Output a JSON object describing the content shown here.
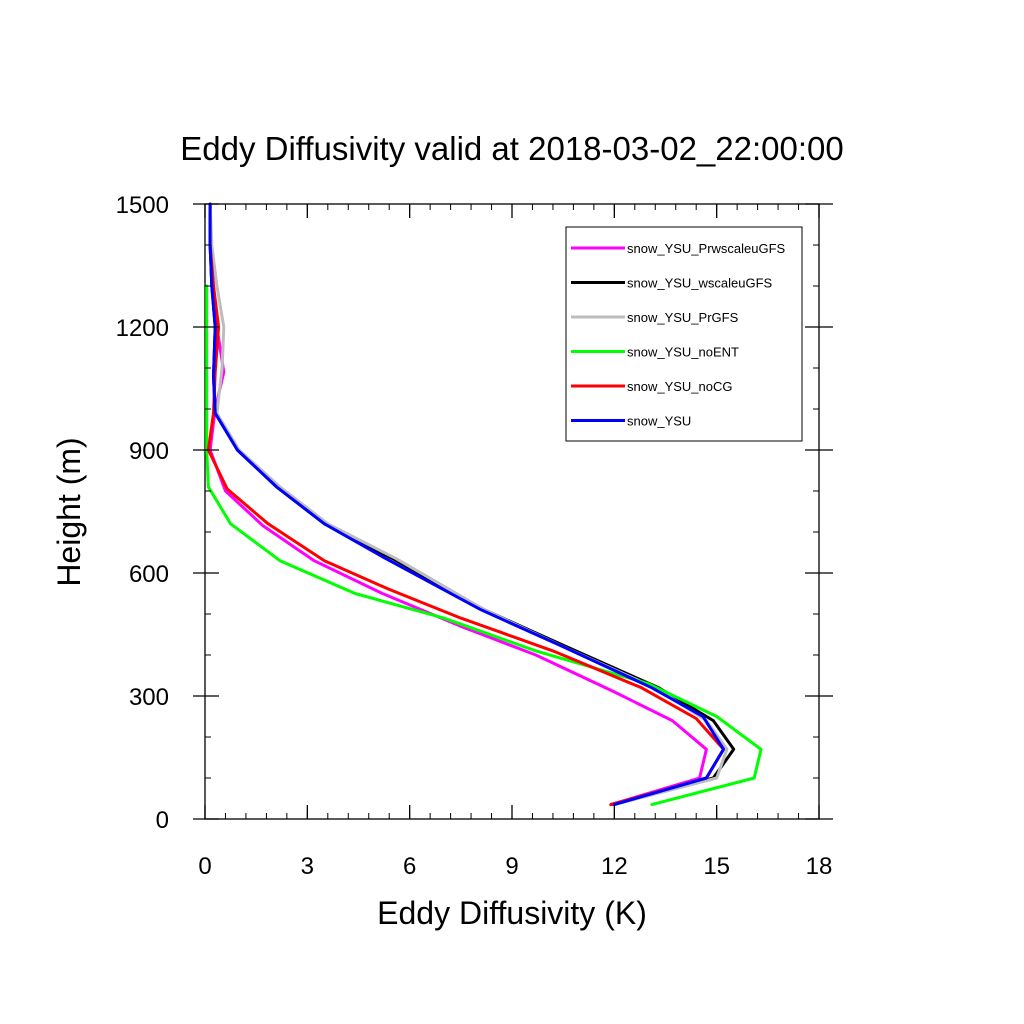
{
  "chart_data": {
    "type": "line",
    "title": "Eddy Diffusivity valid at 2018-03-02_22:00:00",
    "xlabel": "Eddy Diffusivity (K)",
    "ylabel": "Height (m)",
    "xlim": [
      0,
      18
    ],
    "ylim": [
      0,
      1500
    ],
    "xticks": [
      0,
      3,
      6,
      9,
      12,
      15,
      18
    ],
    "yticks": [
      0,
      300,
      600,
      900,
      1200,
      1500
    ],
    "x_minor_step": 0.6,
    "y_minor_step": 100,
    "grid": false,
    "legend_position": "top-right",
    "series": [
      {
        "name": "snow_YSU_PrwscaleuGFS",
        "color": "#ff00ff",
        "points": [
          [
            11.9,
            35
          ],
          [
            14.5,
            100
          ],
          [
            14.7,
            170
          ],
          [
            13.7,
            240
          ],
          [
            12.0,
            310
          ],
          [
            9.7,
            400
          ],
          [
            7.5,
            470
          ],
          [
            5.2,
            550
          ],
          [
            3.2,
            630
          ],
          [
            1.7,
            715
          ],
          [
            0.6,
            800
          ],
          [
            0.15,
            900
          ],
          [
            0.3,
            1000
          ],
          [
            0.55,
            1090
          ],
          [
            0.35,
            1200
          ],
          [
            0.25,
            1300
          ],
          [
            0.15,
            1400
          ],
          [
            0.15,
            1500
          ]
        ]
      },
      {
        "name": "snow_YSU_wscaleuGFS",
        "color": "#000000",
        "points": [
          [
            11.9,
            35
          ],
          [
            14.9,
            100
          ],
          [
            15.5,
            170
          ],
          [
            14.9,
            240
          ],
          [
            13.3,
            320
          ],
          [
            10.6,
            420
          ],
          [
            8.2,
            510
          ],
          [
            5.5,
            635
          ],
          [
            3.5,
            720
          ],
          [
            2.1,
            810
          ],
          [
            0.95,
            900
          ],
          [
            0.3,
            990
          ],
          [
            0.25,
            1080
          ],
          [
            0.3,
            1200
          ],
          [
            0.2,
            1300
          ],
          [
            0.15,
            1400
          ],
          [
            0.15,
            1500
          ]
        ]
      },
      {
        "name": "snow_YSU_PrGFS",
        "color": "#bdbdbd",
        "points": [
          [
            12.0,
            35
          ],
          [
            15.0,
            100
          ],
          [
            15.3,
            170
          ],
          [
            14.7,
            240
          ],
          [
            13.2,
            320
          ],
          [
            10.5,
            420
          ],
          [
            8.2,
            510
          ],
          [
            5.6,
            635
          ],
          [
            3.6,
            720
          ],
          [
            2.2,
            810
          ],
          [
            1.0,
            900
          ],
          [
            0.35,
            990
          ],
          [
            0.5,
            1100
          ],
          [
            0.55,
            1200
          ],
          [
            0.35,
            1300
          ],
          [
            0.2,
            1400
          ],
          [
            0.15,
            1500
          ]
        ]
      },
      {
        "name": "snow_YSU_noENT",
        "color": "#00ff00",
        "points": [
          [
            13.1,
            35
          ],
          [
            16.1,
            100
          ],
          [
            16.3,
            170
          ],
          [
            15.0,
            250
          ],
          [
            13.0,
            330
          ],
          [
            9.7,
            410
          ],
          [
            7.0,
            490
          ],
          [
            4.4,
            550
          ],
          [
            2.2,
            630
          ],
          [
            0.75,
            720
          ],
          [
            0.1,
            810
          ],
          [
            0.05,
            900
          ],
          [
            0.05,
            1000
          ],
          [
            0.05,
            1100
          ],
          [
            0.05,
            1200
          ],
          [
            0.05,
            1300
          ]
        ]
      },
      {
        "name": "snow_YSU_noCG",
        "color": "#ff0000",
        "points": [
          [
            11.9,
            35
          ],
          [
            14.7,
            100
          ],
          [
            15.2,
            170
          ],
          [
            14.4,
            245
          ],
          [
            12.8,
            320
          ],
          [
            10.2,
            410
          ],
          [
            7.5,
            490
          ],
          [
            5.4,
            560
          ],
          [
            3.5,
            630
          ],
          [
            1.85,
            720
          ],
          [
            0.65,
            805
          ],
          [
            0.1,
            900
          ],
          [
            0.25,
            990
          ],
          [
            0.3,
            1090
          ],
          [
            0.4,
            1200
          ],
          [
            0.25,
            1300
          ],
          [
            0.15,
            1400
          ]
        ]
      },
      {
        "name": "snow_YSU",
        "color": "#0000ff",
        "points": [
          [
            12.0,
            35
          ],
          [
            14.7,
            100
          ],
          [
            15.2,
            170
          ],
          [
            14.6,
            250
          ],
          [
            13.1,
            320
          ],
          [
            10.5,
            420
          ],
          [
            8.1,
            510
          ],
          [
            5.3,
            635
          ],
          [
            3.5,
            720
          ],
          [
            2.1,
            810
          ],
          [
            0.95,
            900
          ],
          [
            0.3,
            990
          ],
          [
            0.25,
            1080
          ],
          [
            0.3,
            1200
          ],
          [
            0.2,
            1300
          ],
          [
            0.15,
            1400
          ],
          [
            0.15,
            1500
          ]
        ]
      }
    ]
  }
}
